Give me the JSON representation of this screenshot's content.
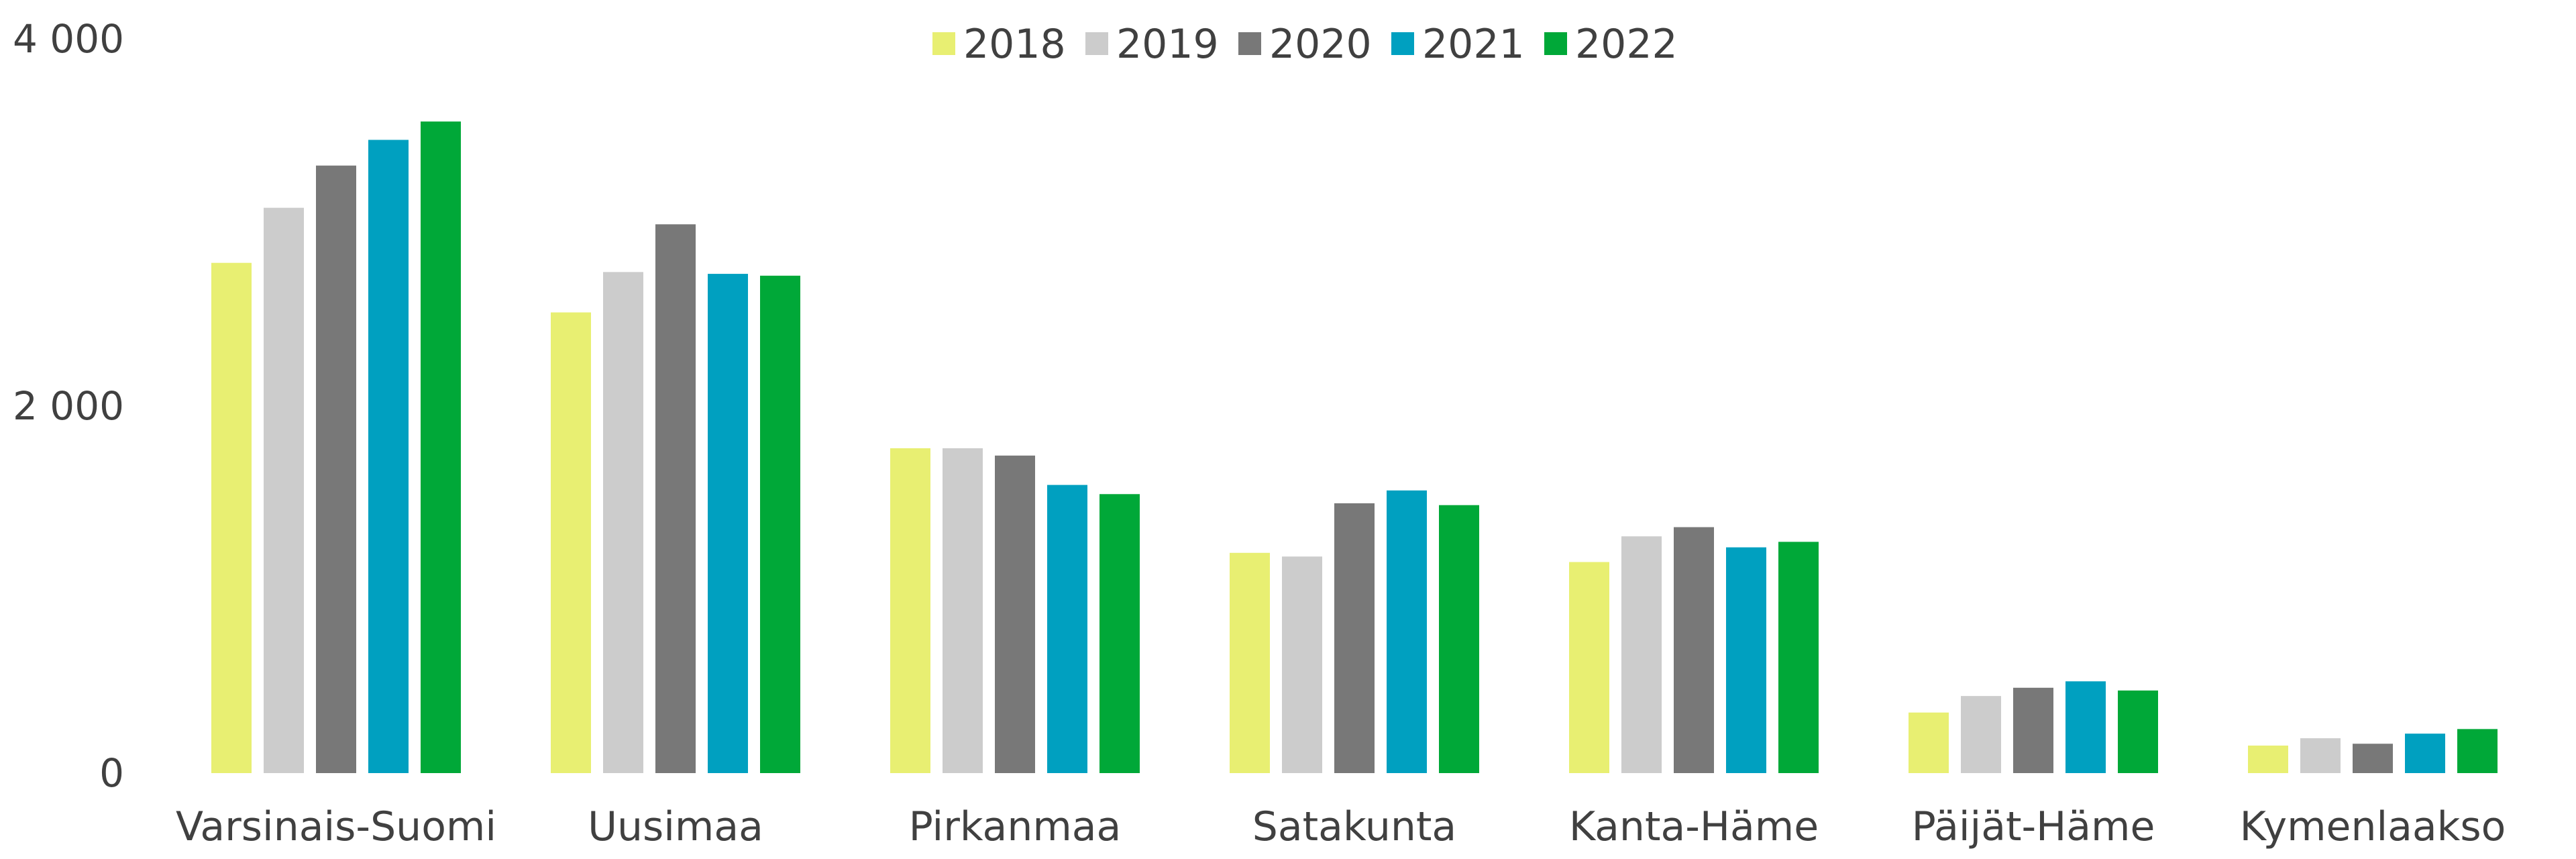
{
  "chart_data": {
    "type": "bar",
    "categories": [
      "Varsinais-Suomi",
      "Uusimaa",
      "Pirkanmaa",
      "Satakunta",
      "Kanta-Häme",
      "Päijät-Häme",
      "Kymenlaakso"
    ],
    "series": [
      {
        "name": "2018",
        "color": "#e8ef72",
        "values": [
          2780,
          2510,
          1770,
          1200,
          1150,
          330,
          150
        ]
      },
      {
        "name": "2019",
        "color": "#cccccc",
        "values": [
          3080,
          2730,
          1770,
          1180,
          1290,
          420,
          190
        ]
      },
      {
        "name": "2020",
        "color": "#787878",
        "values": [
          3310,
          2990,
          1730,
          1470,
          1340,
          465,
          160
        ]
      },
      {
        "name": "2021",
        "color": "#00a0c0",
        "values": [
          3450,
          2720,
          1570,
          1540,
          1230,
          500,
          215
        ]
      },
      {
        "name": "2022",
        "color": "#00a838",
        "values": [
          3550,
          2710,
          1520,
          1460,
          1260,
          450,
          240
        ]
      }
    ],
    "y_ticks": [
      {
        "value": 0,
        "label": "0"
      },
      {
        "value": 2000,
        "label": "2 000"
      },
      {
        "value": 4000,
        "label": "4 000"
      }
    ],
    "ylim": [
      0,
      4000
    ],
    "grid": false,
    "legend_position": "top-center"
  }
}
